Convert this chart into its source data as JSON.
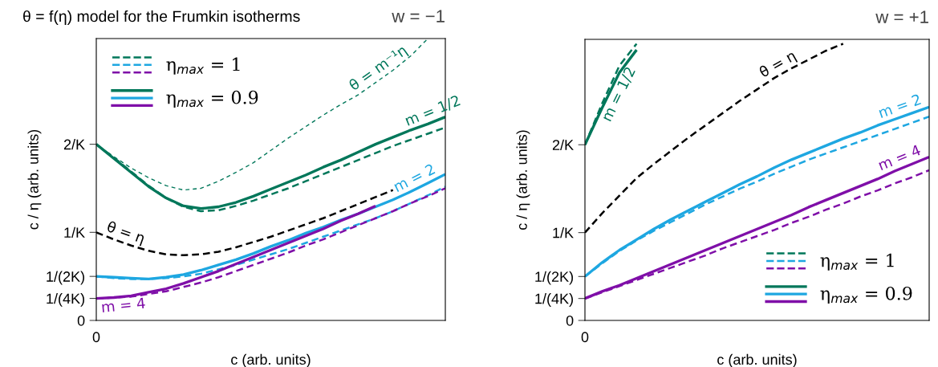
{
  "chart_data": [
    {
      "type": "line",
      "title": "θ = f(η) model for the Frumkin isotherms",
      "subtitle": "w = −1",
      "xlabel": "c (arb. units)",
      "ylabel": "c / η (arb. units)",
      "categories": [
        "0",
        null,
        null,
        null,
        null,
        null,
        null,
        null,
        null,
        null,
        null,
        null,
        null,
        null,
        null,
        null,
        null,
        null,
        null,
        null,
        null
      ],
      "ylim": [
        0,
        3.2
      ],
      "yticks": [
        0,
        {
          "value": 0.25,
          "label": "1/(4K)"
        },
        {
          "value": 0.5,
          "label": "1/(2K)"
        },
        {
          "value": 1,
          "label": "1/K"
        },
        {
          "value": 2,
          "label": "2/K"
        }
      ],
      "legend": "top left",
      "marker": "none",
      "series": [
        {
          "name": "η$_{max}$ = 1",
          "color": "#00775a",
          "line_style": "dashed",
          "values": [
            2.0,
            1.85,
            1.69,
            1.53,
            1.39,
            1.29,
            1.24,
            1.25,
            1.3,
            1.36,
            1.43,
            1.5,
            1.58,
            1.66,
            1.74,
            1.82,
            1.9,
            1.98,
            2.05,
            2.12,
            2.19
          ]
        },
        {
          "color": "#1ea7e1",
          "line_style": "dashed",
          "values": [
            0.5,
            0.48,
            0.47,
            0.47,
            0.48,
            0.5,
            0.53,
            0.58,
            0.63,
            0.69,
            0.75,
            0.81,
            0.88,
            0.95,
            1.02,
            1.09,
            1.16,
            1.24,
            1.33,
            1.42,
            1.52
          ]
        },
        {
          "color": "#7f0fa8",
          "line_style": "dashed",
          "values": [
            0.25,
            0.26,
            0.27,
            0.3,
            0.33,
            0.38,
            0.43,
            0.49,
            0.56,
            0.63,
            0.7,
            0.77,
            0.85,
            0.92,
            1.0,
            1.08,
            1.16,
            1.24,
            1.33,
            1.41,
            1.5
          ]
        },
        {
          "name": "η$_{max}$ = 0.9",
          "color": "#00775a",
          "line_style": "solid",
          "values": [
            2.0,
            1.84,
            1.68,
            1.52,
            1.39,
            1.3,
            1.27,
            1.29,
            1.34,
            1.41,
            1.49,
            1.57,
            1.65,
            1.74,
            1.82,
            1.91,
            2.0,
            2.08,
            2.16,
            2.23,
            2.31
          ]
        },
        {
          "color": "#1ea7e1",
          "line_style": "solid",
          "values": [
            0.5,
            0.49,
            0.48,
            0.47,
            0.49,
            0.52,
            0.57,
            0.63,
            0.69,
            0.76,
            0.84,
            0.91,
            0.99,
            1.06,
            1.14,
            1.21,
            1.29,
            1.37,
            1.46,
            1.56,
            1.66
          ]
        },
        {
          "color": "#7f0fa8",
          "line_style": "solid",
          "values": [
            0.25,
            0.26,
            0.28,
            0.32,
            0.36,
            0.42,
            0.49,
            0.56,
            0.64,
            0.72,
            0.8,
            0.88,
            0.96,
            1.04,
            1.13,
            1.21,
            1.3,
            null,
            null,
            null,
            null
          ]
        },
        {
          "color": "#00775a",
          "line_style": "dotted",
          "values": [
            2.0,
            1.86,
            1.73,
            1.62,
            1.53,
            1.48,
            1.5,
            1.58,
            1.68,
            1.79,
            1.93,
            2.07,
            2.2,
            2.33,
            2.45,
            2.56,
            2.7,
            2.84,
            3.0,
            3.2,
            null
          ]
        },
        {
          "color": "#000000",
          "line_style": "dashed",
          "values": [
            1.0,
            0.92,
            0.85,
            0.79,
            0.75,
            0.74,
            0.75,
            0.78,
            0.83,
            0.89,
            0.95,
            1.02,
            1.09,
            1.16,
            1.24,
            1.32,
            1.4,
            1.48,
            null,
            null,
            null
          ]
        }
      ],
      "annotations": [
        "m = 1/2",
        "m = 2",
        "m = 4",
        "θ = m⁻¹η",
        "θ = η"
      ]
    },
    {
      "type": "line",
      "subtitle": "w = +1",
      "xlabel": "c (arb. units)",
      "ylabel": "c / η (arb. units)",
      "categories": [
        "0",
        null,
        null,
        null,
        null,
        null,
        null,
        null,
        null,
        null,
        null,
        null,
        null,
        null,
        null,
        null,
        null,
        null,
        null,
        null,
        null
      ],
      "ylim": [
        0,
        3.2
      ],
      "yticks": [
        0,
        {
          "value": 0.25,
          "label": "1/(4K)"
        },
        {
          "value": 0.5,
          "label": "1/(2K)"
        },
        {
          "value": 1,
          "label": "1/K"
        },
        {
          "value": 2,
          "label": "2/K"
        }
      ],
      "legend": "bottom right",
      "marker": "none",
      "series": [
        {
          "name": "η$_{max}$ = 1",
          "color": "#00775a",
          "line_style": "dashed",
          "values": [
            2.0,
            2.47,
            2.9,
            3.15,
            null,
            null,
            null,
            null,
            null,
            null,
            null,
            null,
            null,
            null,
            null,
            null,
            null,
            null,
            null,
            null,
            null
          ]
        },
        {
          "color": "#1ea7e1",
          "line_style": "dashed",
          "values": [
            0.5,
            0.65,
            0.79,
            0.91,
            1.02,
            1.12,
            1.22,
            1.32,
            1.41,
            1.5,
            1.58,
            1.67,
            1.75,
            1.83,
            1.9,
            1.97,
            2.04,
            2.11,
            2.18,
            2.25,
            2.32
          ]
        },
        {
          "color": "#7f0fa8",
          "line_style": "dashed",
          "values": [
            0.25,
            0.32,
            0.39,
            0.46,
            0.53,
            0.6,
            0.67,
            0.74,
            0.82,
            0.89,
            0.96,
            1.03,
            1.11,
            1.18,
            1.26,
            1.33,
            1.41,
            1.48,
            1.56,
            1.63,
            1.71
          ]
        },
        {
          "name": "η$_{max}$ = 0.9",
          "color": "#00775a",
          "line_style": "solid",
          "values": [
            2.0,
            2.42,
            2.82,
            3.08,
            null,
            null,
            null,
            null,
            null,
            null,
            null,
            null,
            null,
            null,
            null,
            null,
            null,
            null,
            null,
            null,
            null
          ]
        },
        {
          "color": "#1ea7e1",
          "line_style": "solid",
          "values": [
            0.5,
            0.66,
            0.8,
            0.92,
            1.04,
            1.15,
            1.25,
            1.35,
            1.45,
            1.55,
            1.64,
            1.74,
            1.83,
            1.91,
            1.99,
            2.07,
            2.14,
            2.22,
            2.29,
            2.36,
            2.43
          ]
        },
        {
          "color": "#7f0fa8",
          "line_style": "solid",
          "values": [
            0.25,
            0.33,
            0.4,
            0.48,
            0.56,
            0.64,
            0.72,
            0.8,
            0.88,
            0.96,
            1.04,
            1.12,
            1.2,
            1.29,
            1.37,
            1.45,
            1.53,
            1.61,
            1.7,
            1.78,
            1.86
          ]
        },
        {
          "color": "#000000",
          "line_style": "dashed",
          "values": [
            1.0,
            1.22,
            1.42,
            1.62,
            1.78,
            1.93,
            2.08,
            2.22,
            2.36,
            2.5,
            2.63,
            2.76,
            2.87,
            2.97,
            3.07,
            3.15,
            null,
            null,
            null,
            null,
            null
          ]
        }
      ],
      "annotations": [
        "m = 1/2",
        "m = 2",
        "m = 4",
        "θ = η"
      ]
    }
  ]
}
